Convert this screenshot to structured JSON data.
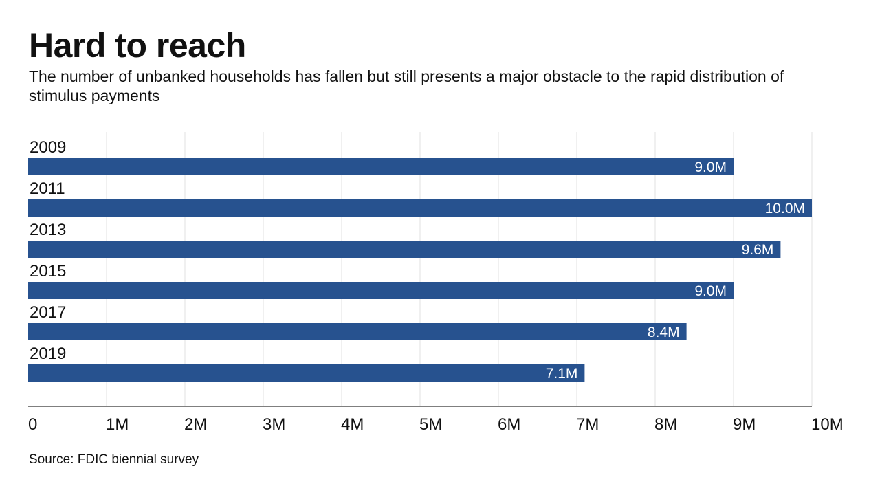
{
  "chart_data": {
    "type": "bar",
    "orientation": "horizontal",
    "title": "Hard to reach",
    "subtitle": "The number of unbanked households has fallen but still presents a major obstacle to the rapid distribution of stimulus payments",
    "source": "Source: FDIC biennial survey",
    "categories": [
      "2009",
      "2011",
      "2013",
      "2015",
      "2017",
      "2019"
    ],
    "values": [
      9.0,
      10.0,
      9.6,
      9.0,
      8.4,
      7.1
    ],
    "value_labels": [
      "9.0M",
      "10.0M",
      "9.6M",
      "9.0M",
      "8.4M",
      "7.1M"
    ],
    "xlim": [
      0,
      10
    ],
    "ticks": [
      0,
      1,
      2,
      3,
      4,
      5,
      6,
      7,
      8,
      9,
      10
    ],
    "tick_labels": [
      "0",
      "1M",
      "2M",
      "3M",
      "4M",
      "5M",
      "6M",
      "7M",
      "8M",
      "9M",
      "10M"
    ],
    "xlabel": "",
    "ylabel": "",
    "grid": true,
    "bar_color": "#27528f"
  }
}
